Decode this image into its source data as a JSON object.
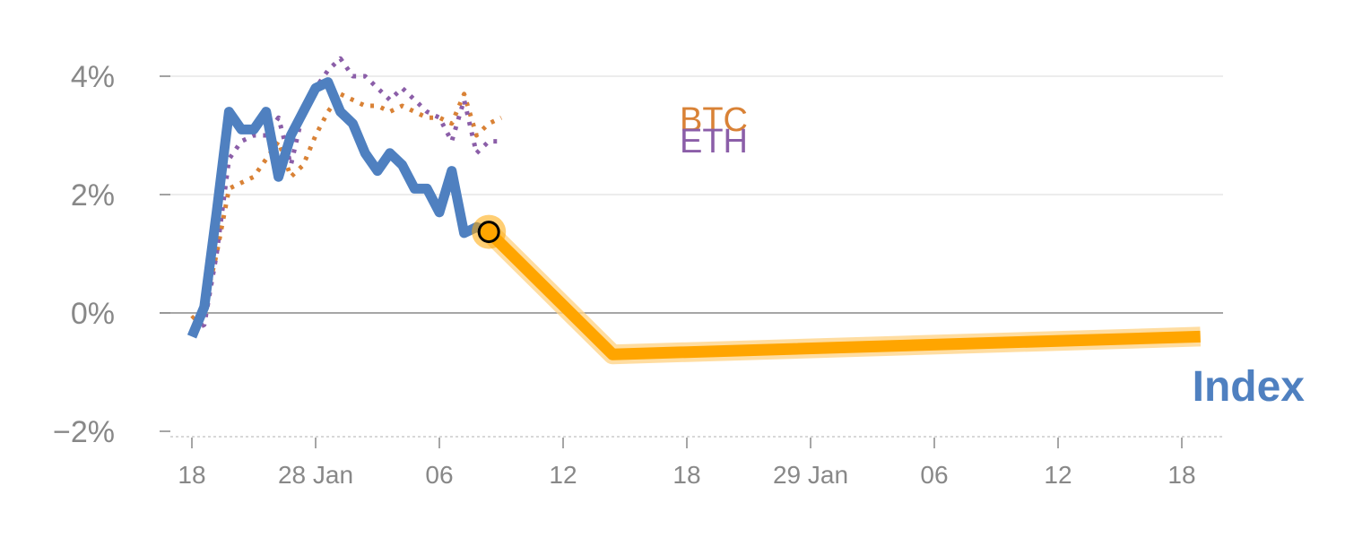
{
  "chart_data": {
    "type": "line",
    "y_unit": "%",
    "ylim": [
      -2,
      4.4
    ],
    "y_ticks": [
      {
        "value": 4,
        "label": "4%"
      },
      {
        "value": 2,
        "label": "2%"
      },
      {
        "value": 0,
        "label": "0%"
      },
      {
        "value": -2,
        "label": "−2%"
      }
    ],
    "x_ticks": [
      "18",
      "28 Jan",
      "06",
      "12",
      "18",
      "29 Jan",
      "06",
      "12",
      "18"
    ],
    "series": [
      {
        "name": "BTC",
        "color": "#d98236",
        "style": "dotted",
        "values": [
          -0.1,
          0.1,
          1.0,
          2.1,
          2.2,
          2.3,
          2.6,
          2.9,
          2.3,
          2.5,
          3.0,
          3.4,
          3.7,
          3.6,
          3.5,
          3.5,
          3.4,
          3.5,
          3.4,
          3.3,
          3.3,
          3.2,
          3.7,
          3.0,
          3.2,
          3.3
        ]
      },
      {
        "name": "ETH",
        "color": "#8b5ea8",
        "style": "dotted",
        "values": [
          -0.3,
          -0.2,
          1.0,
          2.6,
          2.9,
          3.0,
          3.0,
          3.3,
          2.5,
          3.4,
          3.8,
          4.1,
          4.3,
          4.0,
          4.0,
          3.8,
          3.6,
          3.8,
          3.6,
          3.4,
          3.3,
          2.9,
          3.6,
          2.7,
          2.9,
          2.9
        ]
      },
      {
        "name": "Index",
        "color": "#4f80c0",
        "style": "solid",
        "values": [
          -0.4,
          0.1,
          1.7,
          3.4,
          3.1,
          3.1,
          3.4,
          2.3,
          3.0,
          3.4,
          3.8,
          3.9,
          3.4,
          3.2,
          2.7,
          2.4,
          2.7,
          2.5,
          2.1,
          2.1,
          1.7,
          2.4,
          1.35,
          1.45,
          1.37
        ]
      }
    ],
    "projection": {
      "color": "#ffa500",
      "points": [
        {
          "t": 24,
          "value": 1.37
        },
        {
          "t": 34,
          "value": -0.7
        },
        {
          "t": 81.5,
          "value": -0.4
        }
      ]
    },
    "highlight_point": {
      "t": 24,
      "value": 1.37
    },
    "labels": {
      "btc": "BTC",
      "eth": "ETH",
      "index": "Index"
    }
  }
}
